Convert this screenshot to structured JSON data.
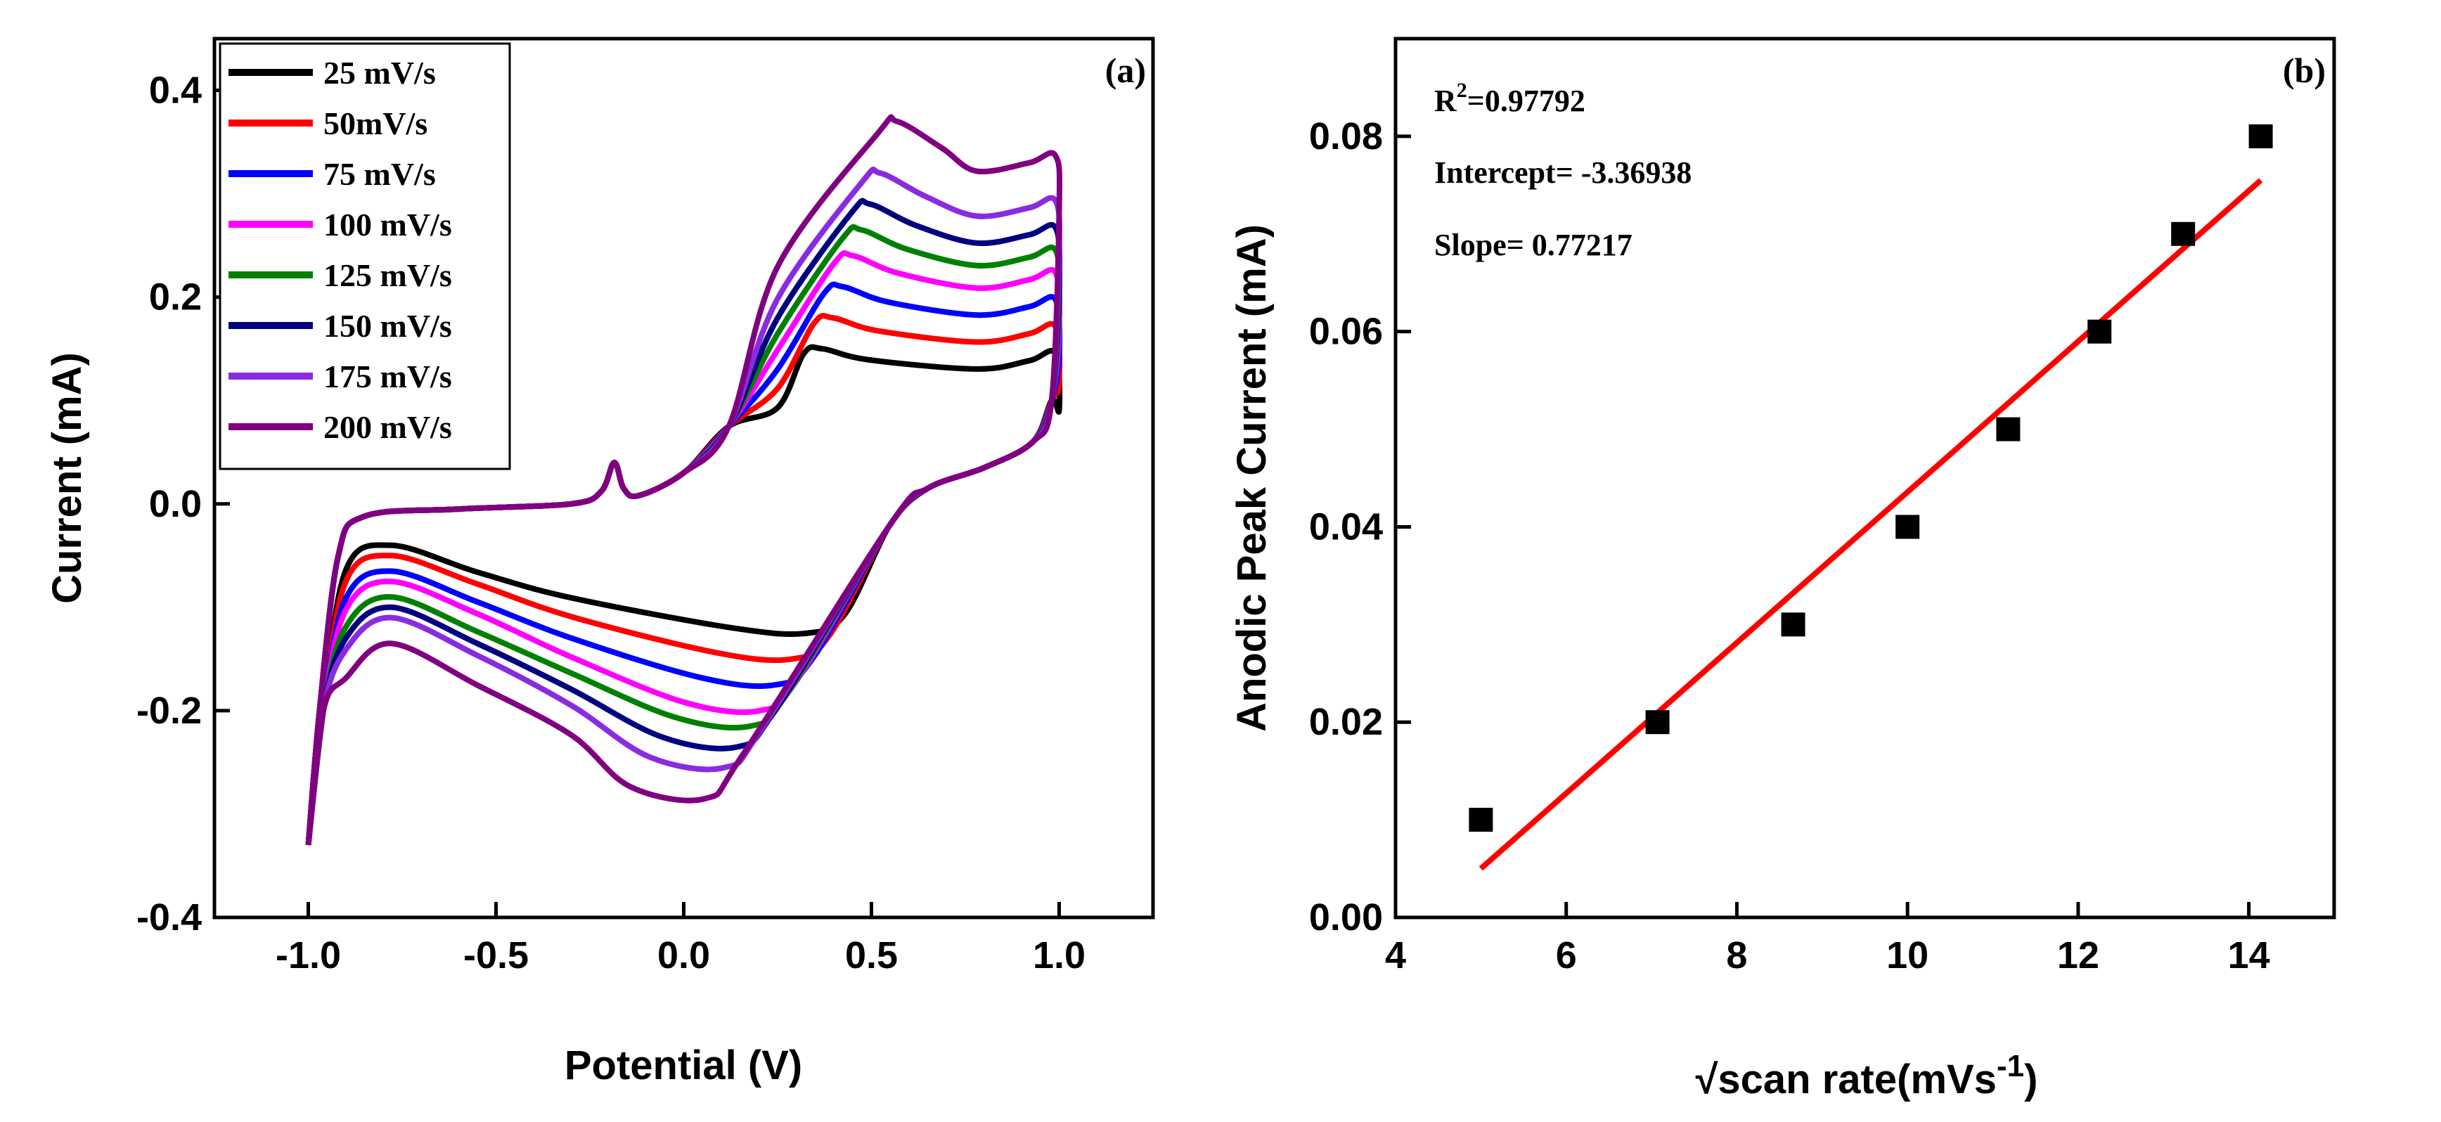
{
  "chart_data": [
    {
      "type": "line",
      "panel_label": "(a)",
      "xlabel": "Potential (V)",
      "ylabel": "Current (mA)",
      "xlim": [
        -1.25,
        1.25
      ],
      "ylim": [
        -0.4,
        0.45
      ],
      "xticks": [
        -1.0,
        -0.5,
        0.0,
        0.5,
        1.0
      ],
      "xtick_labels": [
        "-1.0",
        "-0.5",
        "0.0",
        "0.5",
        "1.0"
      ],
      "yticks": [
        -0.4,
        -0.2,
        0.0,
        0.2,
        0.4
      ],
      "ytick_labels": [
        "-0.4",
        "-0.2",
        "0.0",
        "0.2",
        "0.4"
      ],
      "grid": false,
      "legend_position": "top-left",
      "series": [
        {
          "name": "25 mV/s",
          "color": "#000000",
          "anodic_peak": 0.15,
          "cathodic_peak": -0.125,
          "start": -0.04
        },
        {
          "name": "50mV/s",
          "color": "#ff0000",
          "anodic_peak": 0.18,
          "cathodic_peak": -0.15,
          "start": -0.05
        },
        {
          "name": "75 mV/s",
          "color": "#0000ff",
          "anodic_peak": 0.21,
          "cathodic_peak": -0.175,
          "start": -0.065
        },
        {
          "name": "100 mV/s",
          "color": "#ff00ff",
          "anodic_peak": 0.24,
          "cathodic_peak": -0.2,
          "start": -0.075
        },
        {
          "name": "125 mV/s",
          "color": "#008000",
          "anodic_peak": 0.265,
          "cathodic_peak": -0.215,
          "start": -0.09
        },
        {
          "name": "150 mV/s",
          "color": "#000080",
          "anodic_peak": 0.29,
          "cathodic_peak": -0.235,
          "start": -0.1
        },
        {
          "name": "175 mV/s",
          "color": "#8a2be2",
          "anodic_peak": 0.32,
          "cathodic_peak": -0.255,
          "start": -0.11
        },
        {
          "name": "200 mV/s",
          "color": "#800080",
          "anodic_peak": 0.37,
          "cathodic_peak": -0.285,
          "start": -0.135
        }
      ]
    },
    {
      "type": "scatter",
      "panel_label": "(b)",
      "xlabel": "√scan rate(mVs-1)",
      "xlabel_main": "√scan rate(mVs",
      "xlabel_sup": "-1",
      "xlabel_end": ")",
      "ylabel": "Anodic Peak Current (mA)",
      "xlim": [
        4,
        15
      ],
      "ylim": [
        0.0,
        0.09
      ],
      "xticks": [
        4,
        6,
        8,
        10,
        12,
        14
      ],
      "xtick_labels": [
        "4",
        "6",
        "8",
        "10",
        "12",
        "14"
      ],
      "yticks": [
        0.0,
        0.02,
        0.04,
        0.06,
        0.08
      ],
      "ytick_labels": [
        "0.00",
        "0.02",
        "0.04",
        "0.06",
        "0.08"
      ],
      "grid": false,
      "points": {
        "x": [
          5.0,
          7.07,
          8.66,
          10.0,
          11.18,
          12.25,
          13.23,
          14.14
        ],
        "y": [
          0.01,
          0.02,
          0.03,
          0.04,
          0.05,
          0.06,
          0.07,
          0.08
        ],
        "color": "#000000"
      },
      "fit": {
        "x": [
          5.0,
          14.14
        ],
        "y": [
          0.005,
          0.0755
        ],
        "color": "#ff0000"
      },
      "annotations": {
        "r2_main": "R",
        "r2_sup": "2",
        "r2_value": "=0.97792",
        "intercept": "Intercept= -3.36938",
        "slope": "Slope= 0.77217"
      }
    }
  ]
}
